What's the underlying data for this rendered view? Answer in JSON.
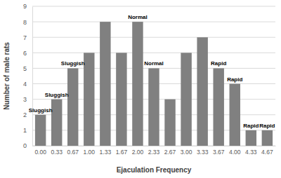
{
  "chart_data": {
    "type": "bar",
    "categories": [
      "0.00",
      "0.33",
      "0.67",
      "1.00",
      "1.33",
      "1.67",
      "2.00",
      "2.33",
      "2.67",
      "3.00",
      "3.33",
      "3.67",
      "4.00",
      "4.33",
      "4.67"
    ],
    "values": [
      2,
      3,
      5,
      6,
      8,
      6,
      8,
      5,
      3,
      6,
      7,
      5,
      4,
      1,
      1
    ],
    "color": "#808080",
    "x_label": "Ejaculation Frequency",
    "y_label": "Number of male rats",
    "ylim": [
      0,
      9
    ],
    "yticks": [
      0,
      1,
      2,
      3,
      4,
      5,
      6,
      7,
      8,
      9
    ],
    "grid": true,
    "annotations": [
      {
        "text": "Sluggish",
        "category": "0.00"
      },
      {
        "text": "Sluggish",
        "category": "0.33"
      },
      {
        "text": "Sluggish",
        "category": "0.67"
      },
      {
        "text": "Normal",
        "category": "2.00"
      },
      {
        "text": "Normal",
        "category": "2.33"
      },
      {
        "text": "Rapid",
        "category": "3.67"
      },
      {
        "text": "Rapid",
        "category": "4.00"
      },
      {
        "text": "Rapid",
        "category": "4.33"
      },
      {
        "text": "Rapid",
        "category": "4.67"
      }
    ]
  }
}
